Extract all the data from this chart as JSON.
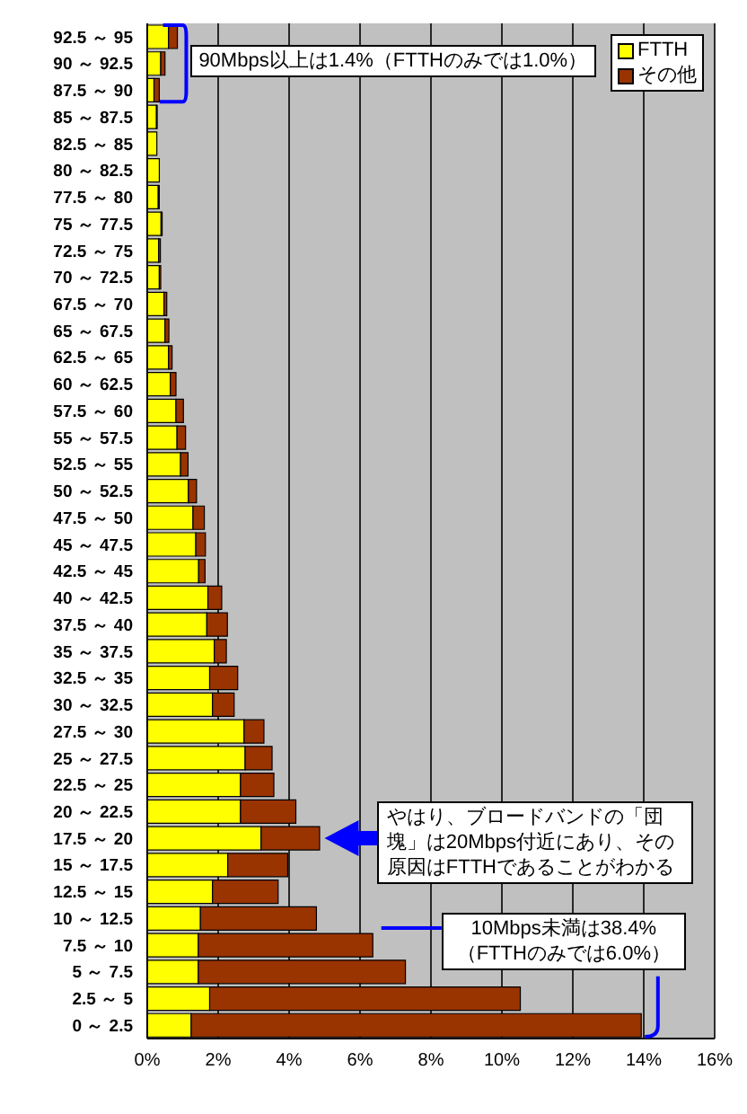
{
  "chart_data": {
    "type": "bar",
    "orientation": "horizontal",
    "stacked": true,
    "categories": [
      "92.5 ～ 95",
      "90 ～ 92.5",
      "87.5 ～ 90",
      "85 ～ 87.5",
      "82.5 ～ 85",
      "80 ～ 82.5",
      "77.5 ～ 80",
      "75 ～ 77.5",
      "72.5 ～ 75",
      "70 ～ 72.5",
      "67.5 ～ 70",
      "65 ～ 67.5",
      "62.5 ～ 65",
      "60 ～ 62.5",
      "57.5 ～ 60",
      "55 ～ 57.5",
      "52.5 ～ 55",
      "50 ～ 52.5",
      "47.5 ～ 50",
      "45 ～ 47.5",
      "42.5 ～ 45",
      "40 ～ 42.5",
      "37.5 ～ 40",
      "35 ～ 37.5",
      "32.5 ～ 35",
      "30 ～ 32.5",
      "27.5 ～ 30",
      "25 ～ 27.5",
      "22.5 ～ 25",
      "20 ～ 22.5",
      "17.5 ～ 20",
      "15 ～ 17.5",
      "12.5 ～ 15",
      "10 ～ 12.5",
      "7.5 ～ 10",
      "5 ～ 7.5",
      "2.5 ～ 5",
      "0 ～ 2.5"
    ],
    "series": [
      {
        "name": "FTTH",
        "color": "#ffff00",
        "values": [
          0.6,
          0.38,
          0.19,
          0.26,
          0.27,
          0.34,
          0.31,
          0.39,
          0.32,
          0.34,
          0.47,
          0.5,
          0.6,
          0.65,
          0.81,
          0.84,
          0.94,
          1.16,
          1.29,
          1.37,
          1.45,
          1.71,
          1.68,
          1.89,
          1.76,
          1.84,
          2.73,
          2.76,
          2.63,
          2.63,
          3.21,
          2.27,
          1.84,
          1.5,
          1.44,
          1.44,
          1.76,
          1.24
        ]
      },
      {
        "name": "その他",
        "color": "#993300",
        "values": [
          0.25,
          0.12,
          0.15,
          0.02,
          null,
          null,
          0.03,
          0.03,
          0.05,
          0.04,
          0.08,
          0.11,
          0.1,
          0.16,
          0.21,
          0.24,
          0.21,
          0.23,
          0.32,
          0.27,
          0.18,
          0.39,
          0.58,
          0.34,
          0.79,
          0.61,
          0.56,
          0.76,
          0.94,
          1.56,
          1.65,
          1.69,
          1.85,
          3.27,
          4.92,
          5.84,
          8.76,
          12.69
        ]
      }
    ],
    "xlim": [
      0,
      16
    ],
    "xticks": [
      {
        "value": 0,
        "label": "0%"
      },
      {
        "value": 2,
        "label": "2%"
      },
      {
        "value": 4,
        "label": "4%"
      },
      {
        "value": 6,
        "label": "6%"
      },
      {
        "value": 8,
        "label": "8%"
      },
      {
        "value": 10,
        "label": "10%"
      },
      {
        "value": 12,
        "label": "12%"
      },
      {
        "value": 14,
        "label": "14%"
      },
      {
        "value": 16,
        "label": "16%"
      }
    ],
    "grid": "x",
    "legend": "top right",
    "annotations": [
      "90Mbps以上は1.4%（FTTHのみでは1.0%）",
      "やはり、ブロードバンドの「団塊」は20Mbps付近にあり、その原因はFTTHであることがわかる",
      {
        "text": "10Mbps未満は38.4%（FTTHのみでは6.0%）",
        "x": 13.93,
        "y": "0 ～ 2.5"
      }
    ]
  }
}
